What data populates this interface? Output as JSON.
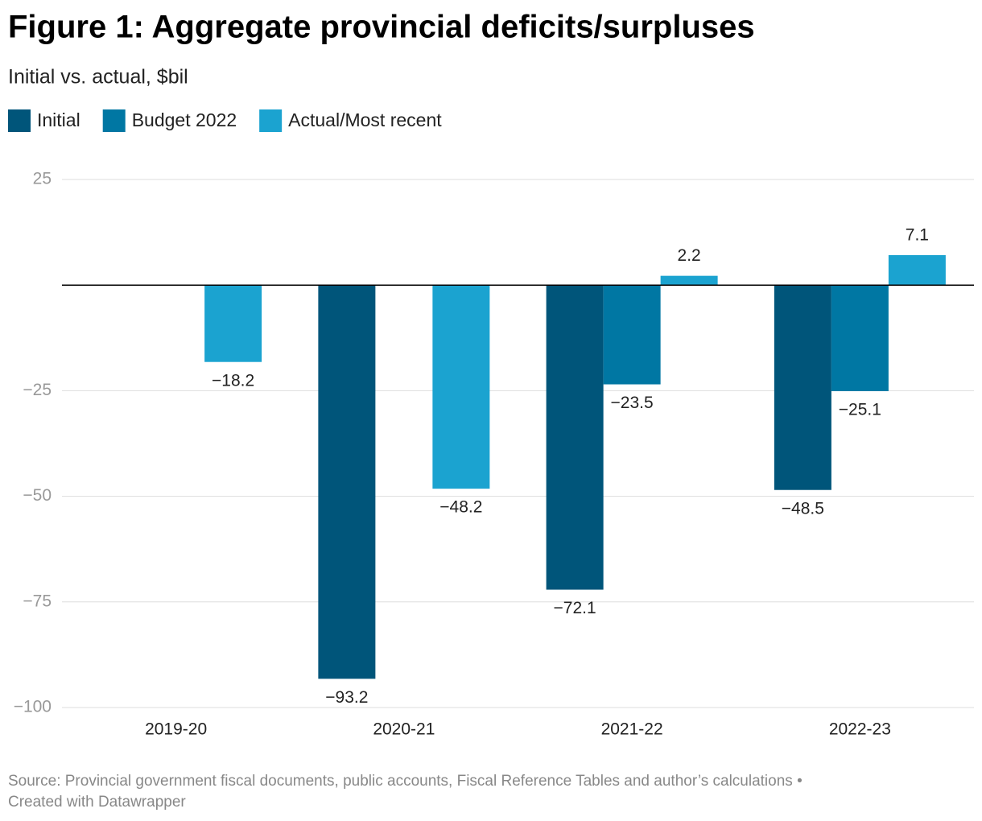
{
  "chart_data": {
    "type": "bar",
    "title": "Figure 1: Aggregate provincial deficits/surpluses",
    "subtitle": "Initial vs. actual, $bil",
    "categories": [
      "2019-20",
      "2020-21",
      "2021-22",
      "2022-23"
    ],
    "series": [
      {
        "name": "Initial",
        "color": "#00557a",
        "values": [
          null,
          -93.2,
          -72.1,
          -48.5
        ],
        "value_labels": [
          null,
          "−93.2",
          "−72.1",
          "−48.5"
        ]
      },
      {
        "name": "Budget 2022",
        "color": "#0077a3",
        "values": [
          null,
          null,
          -23.5,
          -25.1
        ],
        "value_labels": [
          null,
          null,
          "−23.5",
          "−25.1"
        ]
      },
      {
        "name": "Actual/Most recent",
        "color": "#1ba3d0",
        "values": [
          -18.2,
          -48.2,
          2.2,
          7.1
        ],
        "value_labels": [
          "−18.2",
          "−48.2",
          "2.2",
          "7.1"
        ]
      }
    ],
    "ylim": [
      -100,
      25
    ],
    "yticks": [
      {
        "value": -100,
        "label": "−100"
      },
      {
        "value": -75,
        "label": "−75"
      },
      {
        "value": -50,
        "label": "−50"
      },
      {
        "value": -25,
        "label": "−25"
      },
      25
    ],
    "grid": true,
    "source": "Source: Provincial government fiscal documents, public accounts, Fiscal Reference Tables and author’s calculations •",
    "credit": "Created with Datawrapper"
  }
}
